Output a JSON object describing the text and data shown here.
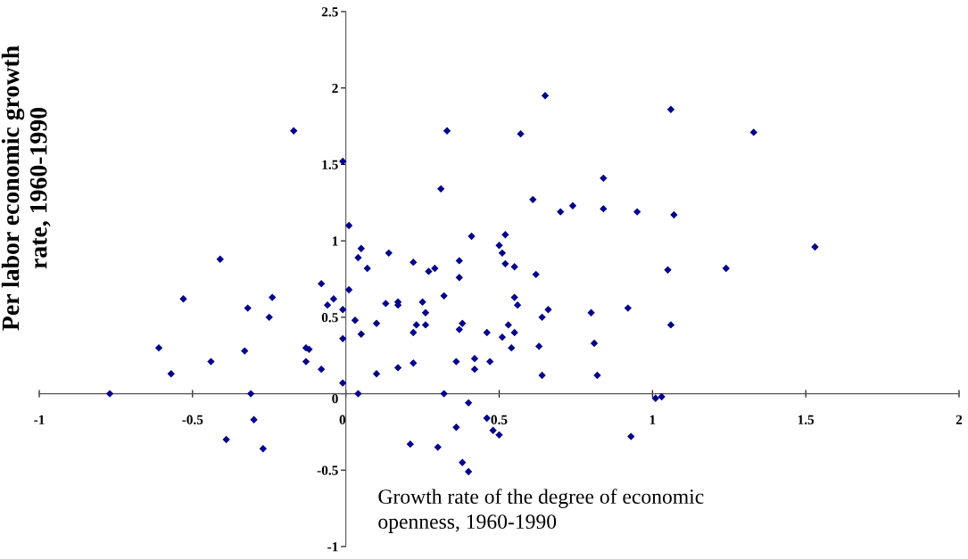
{
  "chart_data": {
    "type": "scatter",
    "xlabel": "Growth rate of the degree of economic\nopenness, 1960-1990",
    "ylabel": "Per labor economic growth\nrate, 1960-1990",
    "xlim": [
      -1,
      2
    ],
    "ylim": [
      -1,
      2.5
    ],
    "xticks": [
      -1,
      -0.5,
      0,
      0.5,
      1,
      1.5,
      2
    ],
    "yticks": [
      -1,
      -0.5,
      0,
      0.5,
      1,
      1.5,
      2,
      2.5
    ],
    "marker": "diamond",
    "grid": false,
    "legend": false,
    "x": [
      -0.77,
      -0.61,
      -0.57,
      -0.53,
      -0.44,
      -0.41,
      -0.39,
      -0.32,
      -0.33,
      -0.31,
      -0.3,
      -0.27,
      -0.25,
      -0.24,
      -0.17,
      -0.13,
      -0.13,
      -0.12,
      -0.08,
      -0.08,
      -0.06,
      -0.04,
      -0.01,
      -0.01,
      -0.01,
      -0.01,
      0.01,
      0.01,
      0.03,
      0.04,
      0.05,
      0.04,
      0.07,
      0.05,
      0.1,
      0.1,
      0.13,
      0.14,
      0.17,
      0.17,
      0.17,
      0.21,
      0.22,
      0.22,
      0.22,
      0.23,
      0.25,
      0.26,
      0.26,
      0.27,
      0.29,
      0.3,
      0.31,
      0.32,
      0.32,
      0.33,
      0.36,
      0.36,
      0.37,
      0.37,
      0.37,
      0.38,
      0.38,
      0.4,
      0.4,
      0.41,
      0.42,
      0.42,
      0.46,
      0.46,
      0.47,
      0.48,
      0.5,
      0.5,
      0.51,
      0.51,
      0.52,
      0.52,
      0.53,
      0.54,
      0.55,
      0.55,
      0.55,
      0.56,
      0.57,
      0.61,
      0.62,
      0.63,
      0.64,
      0.64,
      0.65,
      0.66,
      0.7,
      0.74,
      0.8,
      0.81,
      0.82,
      0.84,
      0.84,
      0.92,
      0.93,
      0.95,
      1.01,
      1.03,
      1.05,
      1.06,
      1.06,
      1.07,
      1.24,
      1.33,
      1.53
    ],
    "series": [
      {
        "color": "#00008b",
        "values": [
          0,
          0.3,
          0.13,
          0.62,
          0.21,
          0.88,
          -0.3,
          0.56,
          0.28,
          0,
          -0.17,
          -0.36,
          0.5,
          0.63,
          1.72,
          0.3,
          0.21,
          0.29,
          0.72,
          0.16,
          0.58,
          0.62,
          1.52,
          0.36,
          0.07,
          0.55,
          1.1,
          0.68,
          0.48,
          0,
          0.95,
          0.89,
          0.82,
          0.39,
          0.46,
          0.13,
          0.59,
          0.92,
          0.6,
          0.58,
          0.17,
          -0.33,
          0.4,
          0.2,
          0.86,
          0.45,
          0.6,
          0.45,
          0.53,
          0.8,
          0.82,
          -0.35,
          1.34,
          0.64,
          0,
          1.72,
          0.21,
          -0.22,
          0.42,
          0.87,
          0.76,
          -0.45,
          0.46,
          -0.51,
          -0.06,
          1.03,
          0.23,
          0.16,
          0.4,
          -0.16,
          0.21,
          -0.24,
          0.97,
          -0.27,
          0.37,
          0.92,
          1.04,
          0.85,
          0.45,
          0.3,
          0.4,
          0.83,
          0.63,
          0.58,
          1.7,
          1.27,
          0.78,
          0.31,
          0.5,
          0.12,
          1.95,
          0.55,
          1.19,
          1.23,
          0.53,
          0.33,
          0.12,
          1.21,
          1.41,
          0.56,
          -0.28,
          1.19,
          -0.03,
          -0.02,
          0.81,
          0.45,
          1.86,
          1.17,
          0.82,
          1.71,
          0.96
        ]
      }
    ]
  }
}
